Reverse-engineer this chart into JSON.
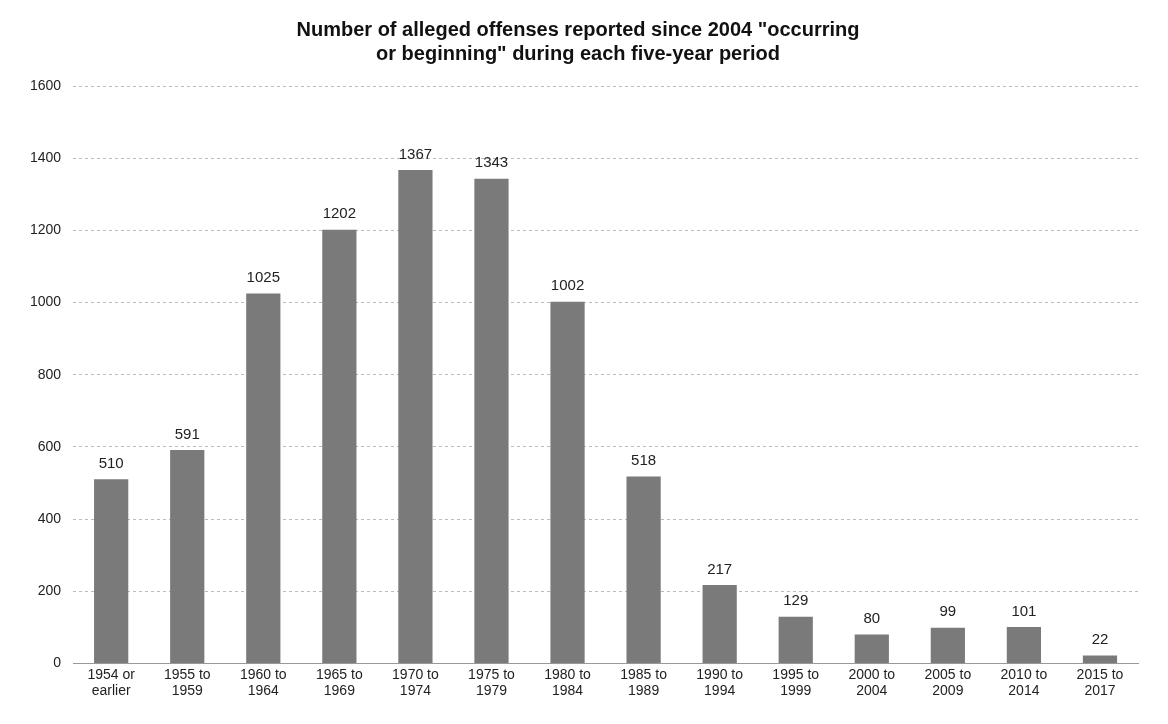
{
  "chart_data": {
    "type": "bar",
    "title": "Number of alleged offenses reported since 2004 \"occurring or beginning\" during each five-year period",
    "categories": [
      "1954 or earlier",
      "1955 to 1959",
      "1960 to 1964",
      "1965 to 1969",
      "1970 to 1974",
      "1975 to 1979",
      "1980 to 1984",
      "1985 to 1989",
      "1990 to 1994",
      "1995 to 1999",
      "2000 to 2004",
      "2005 to 2009",
      "2010 to 2014",
      "2015 to 2017"
    ],
    "values": [
      510,
      591,
      1025,
      1202,
      1367,
      1343,
      1002,
      518,
      217,
      129,
      80,
      99,
      101,
      22
    ],
    "color": "#7a7a7a",
    "ylim": [
      0,
      1600
    ],
    "yticks": [
      0,
      200,
      400,
      600,
      800,
      1000,
      1200,
      1400,
      1600
    ],
    "grid": "y",
    "data_labels": true,
    "legend": false
  }
}
